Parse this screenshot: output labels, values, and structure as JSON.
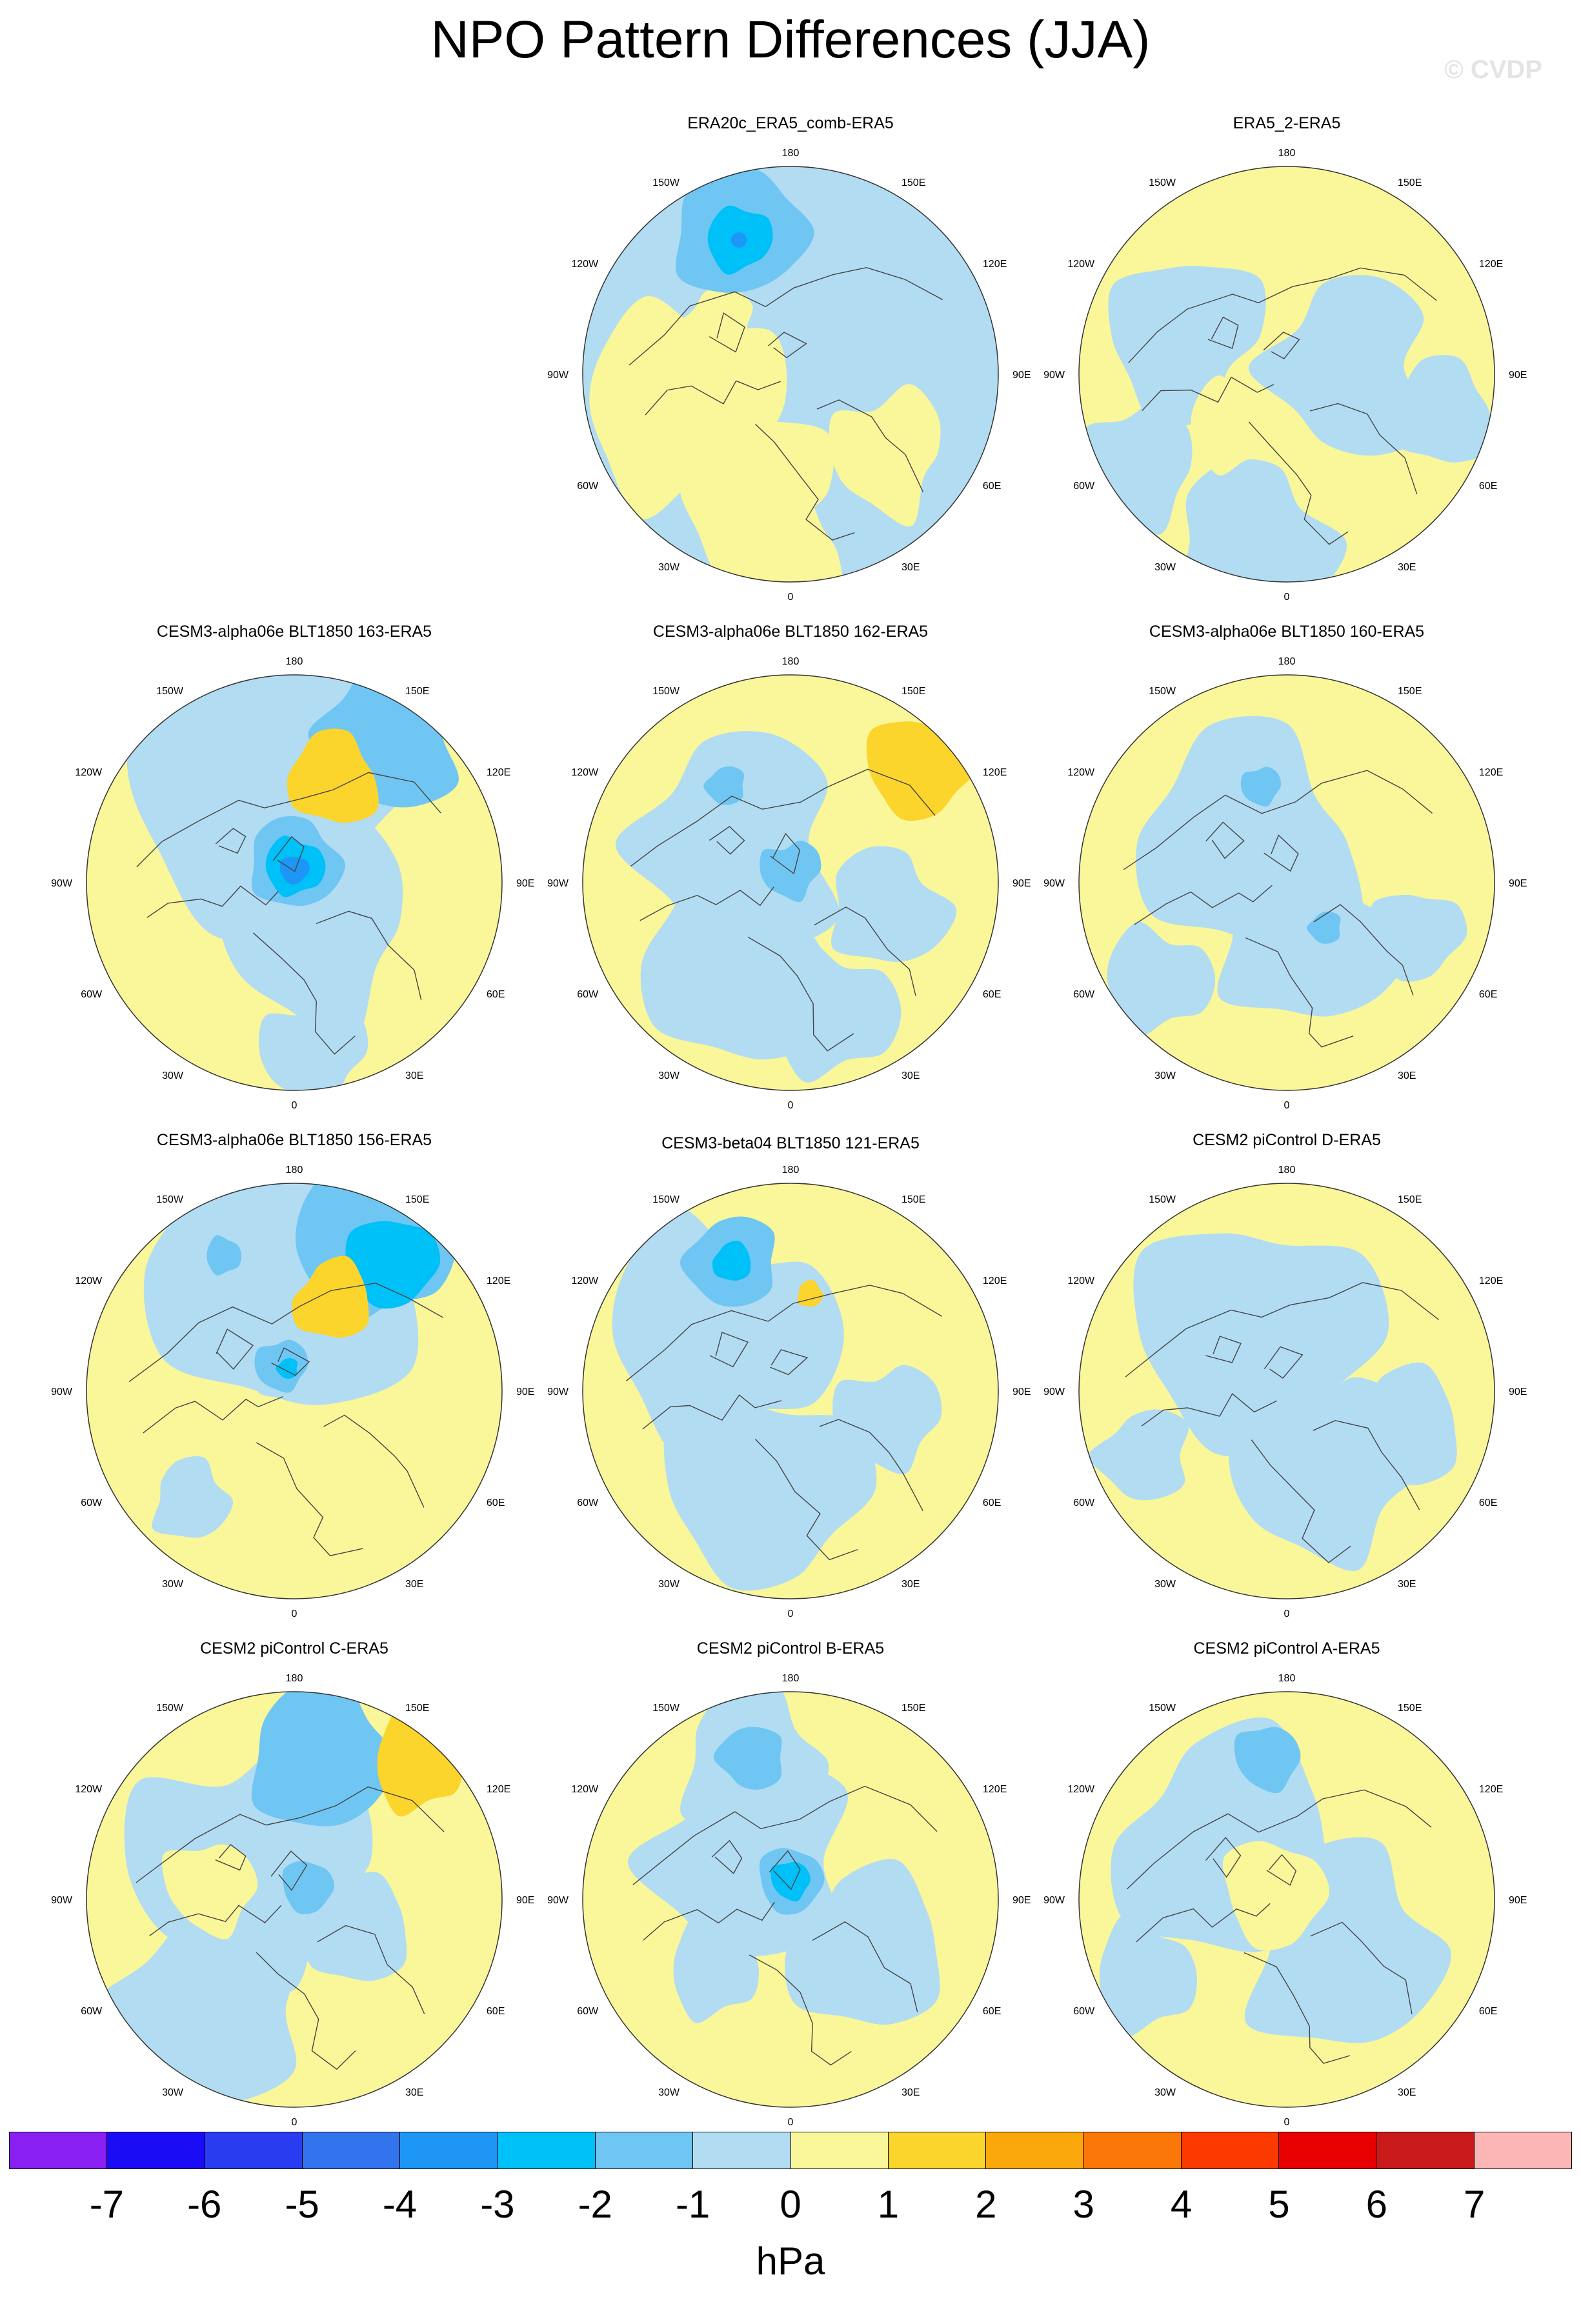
{
  "title": "NPO Pattern Differences (JJA)",
  "watermark": "© CVDP",
  "colorbar": {
    "unit": "hPa",
    "labels": [
      "-7",
      "-6",
      "-5",
      "-4",
      "-3",
      "-2",
      "-1",
      "0",
      "1",
      "2",
      "3",
      "4",
      "5",
      "6",
      "7"
    ],
    "colors": [
      "#8a1ff2",
      "#1a0cf5",
      "#2a3cf0",
      "#3274ee",
      "#1e96f5",
      "#00c0f8",
      "#70c6f2",
      "#b2dcf2",
      "#faf69a",
      "#fbd42c",
      "#fba80c",
      "#fb7808",
      "#fc3a00",
      "#e80000",
      "#c81a1a",
      "#fcb6b6"
    ]
  },
  "lon_labels": [
    "180",
    "150E",
    "120E",
    "90E",
    "60E",
    "30E",
    "0",
    "30W",
    "60W",
    "90W",
    "120W",
    "150W"
  ],
  "panels": [
    {
      "title": "ERA20c_ERA5_comb-ERA5"
    },
    {
      "title": "ERA5_2-ERA5"
    },
    {
      "title": "CESM3-alpha06e BLT1850 163-ERA5"
    },
    {
      "title": "CESM3-alpha06e BLT1850 162-ERA5"
    },
    {
      "title": "CESM3-alpha06e BLT1850 160-ERA5"
    },
    {
      "title": "CESM3-alpha06e BLT1850 156-ERA5"
    },
    {
      "title": "CESM3-beta04 BLT1850 121-ERA5"
    },
    {
      "title": "CESM2 piControl D-ERA5"
    },
    {
      "title": "CESM2 piControl C-ERA5"
    },
    {
      "title": "CESM2 piControl B-ERA5"
    },
    {
      "title": "CESM2 piControl A-ERA5"
    }
  ]
}
